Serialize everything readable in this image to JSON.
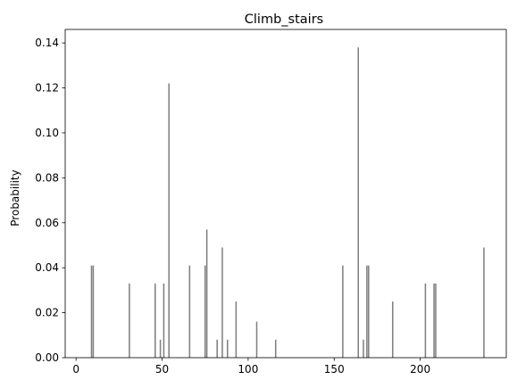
{
  "chart_data": {
    "type": "bar",
    "title": "Climb_stairs",
    "xlabel": "",
    "ylabel": "Probability",
    "xlim": [
      -6.3,
      250
    ],
    "ylim": [
      0,
      0.146
    ],
    "xticks": [
      0,
      50,
      100,
      150,
      200
    ],
    "yticks": [
      0.0,
      0.02,
      0.04,
      0.06,
      0.08,
      0.1,
      0.12,
      0.14
    ],
    "ytick_labels": [
      "0.00",
      "0.02",
      "0.04",
      "0.06",
      "0.08",
      "0.10",
      "0.12",
      "0.14"
    ],
    "bar_width": 0.8,
    "grid": false,
    "colors": {
      "bar": "#808080",
      "axis": "#000000",
      "background": "#ffffff"
    },
    "x": [
      9,
      10,
      31,
      46,
      49,
      51,
      54,
      66,
      75,
      76,
      82,
      85,
      88,
      93,
      105,
      116,
      155,
      164,
      167,
      169,
      170,
      184,
      203,
      208,
      209,
      237
    ],
    "values": [
      0.041,
      0.041,
      0.033,
      0.033,
      0.008,
      0.033,
      0.122,
      0.041,
      0.041,
      0.057,
      0.008,
      0.049,
      0.008,
      0.025,
      0.016,
      0.008,
      0.041,
      0.138,
      0.008,
      0.041,
      0.041,
      0.025,
      0.033,
      0.033,
      0.033,
      0.049
    ]
  }
}
